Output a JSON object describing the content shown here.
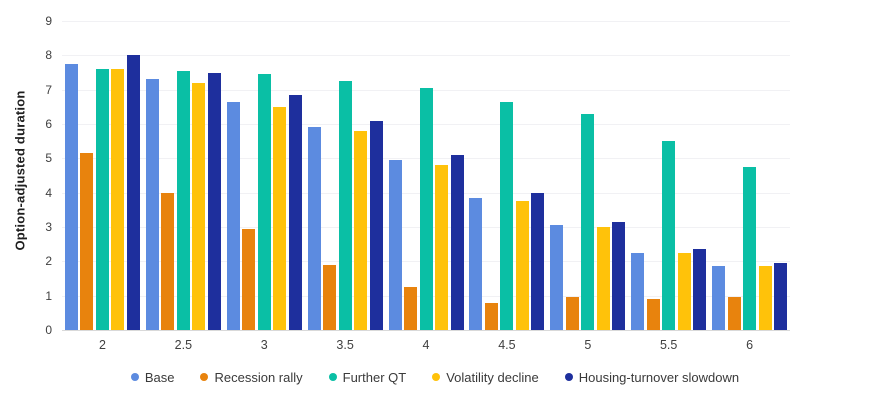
{
  "chart_data": {
    "type": "bar",
    "title": "",
    "xlabel": "",
    "ylabel": "Option-adjusted duration",
    "categories": [
      "2",
      "2.5",
      "3",
      "3.5",
      "4",
      "4.5",
      "5",
      "5.5",
      "6"
    ],
    "series": [
      {
        "name": "Base",
        "color": "#5C8BE0",
        "values": [
          7.75,
          7.3,
          6.65,
          5.9,
          4.95,
          3.85,
          3.05,
          2.25,
          1.85
        ]
      },
      {
        "name": "Recession rally",
        "color": "#E8830D",
        "values": [
          5.15,
          4.0,
          2.95,
          1.9,
          1.25,
          0.8,
          0.95,
          0.9,
          0.95
        ]
      },
      {
        "name": "Further QT",
        "color": "#0ABFA5",
        "values": [
          7.6,
          7.55,
          7.45,
          7.25,
          7.05,
          6.65,
          6.3,
          5.5,
          4.75
        ]
      },
      {
        "name": "Volatility decline",
        "color": "#FFC20A",
        "values": [
          7.6,
          7.2,
          6.5,
          5.8,
          4.8,
          3.75,
          3.0,
          2.25,
          1.85
        ]
      },
      {
        "name": "Housing-turnover slowdown",
        "color": "#1E2F9D",
        "values": [
          8.0,
          7.5,
          6.85,
          6.1,
          5.1,
          4.0,
          3.15,
          2.35,
          1.95
        ]
      }
    ],
    "ylim": [
      0,
      9
    ],
    "ytick_step": 1,
    "grid": "horizontal",
    "legend_position": "bottom",
    "colors": {
      "gridline": "#f1f1f4",
      "baseline": "#d9d9d9",
      "tick_label": "#404040",
      "legend_label": "#3a3a3a",
      "axis_title": "#1f1f1f",
      "background": "#ffffff"
    }
  }
}
